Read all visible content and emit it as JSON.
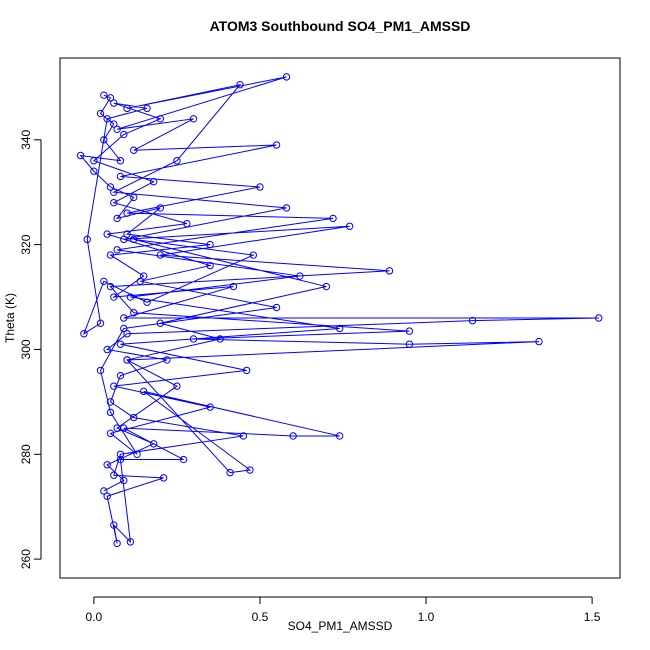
{
  "chart_data": {
    "type": "line",
    "markers": "circle",
    "color": "#0000ff",
    "title": "ATOM3 Southbound SO4_PM1_AMSSD",
    "x_label": "SO4_PM1_AMSSD",
    "y_label": "Theta (K)",
    "xlim": [
      -0.102,
      1.584
    ],
    "ylim": [
      256.4,
      355.6
    ],
    "xticks": [
      {
        "value": 0,
        "label": "0.0"
      },
      0.5,
      {
        "value": 1,
        "label": "1.0"
      },
      1.5
    ],
    "yticks": [
      260,
      280,
      300,
      320,
      340
    ],
    "x": [
      0.03,
      0.05,
      0.02,
      0.06,
      0.03,
      0.08,
      -0.04,
      0.0,
      0.05,
      0.12,
      0.07,
      0.2,
      0.1,
      0.35,
      0.05,
      0.15,
      0.06,
      0.42,
      0.09,
      1.52,
      1.14,
      0.1,
      0.04,
      0.22,
      0.08,
      0.05,
      0.12,
      0.45,
      0.08,
      0.06,
      0.21,
      0.04,
      0.07,
      0.06,
      0.11,
      0.08,
      0.27,
      0.09,
      0.6,
      0.74,
      0.15,
      0.47,
      0.41,
      0.1,
      1.34,
      0.95,
      0.3,
      0.95,
      0.12,
      0.05,
      0.89,
      0.2,
      0.77,
      0.09,
      0.58,
      0.06,
      0.25,
      0.44,
      0.1,
      0.58,
      0.07,
      0.3,
      0.12,
      0.55,
      0.08,
      0.5,
      0.1,
      0.72,
      0.07,
      0.62,
      0.11,
      0.74,
      0.08,
      0.46,
      0.06,
      0.35,
      0.05,
      0.13,
      0.05,
      0.02,
      0.09,
      0.55,
      0.14,
      0.35,
      0.04,
      0.28,
      0.06,
      0.18,
      0.0,
      0.09,
      0.2,
      0.06,
      0.16,
      0.04,
      -0.02,
      0.02,
      -0.03,
      0.03,
      0.16,
      0.48,
      0.12,
      0.7,
      0.2,
      0.38,
      0.1,
      0.25,
      0.07,
      0.18,
      0.04,
      0.09,
      0.03
    ],
    "y": [
      348.5,
      348,
      345,
      343,
      340,
      336,
      337,
      334,
      331,
      329,
      325,
      327,
      322,
      320,
      318,
      314,
      310,
      312,
      306,
      306,
      305.5,
      303,
      300,
      298,
      295,
      290,
      287,
      283.5,
      280,
      276,
      275.5,
      272,
      263,
      266.5,
      263.3,
      279,
      279,
      285,
      283.5,
      283.5,
      292,
      277,
      276.5,
      298,
      301.5,
      301,
      302,
      303.5,
      307,
      312,
      315,
      318,
      323.5,
      321,
      327,
      330,
      336,
      350.5,
      346,
      352,
      342,
      344,
      338,
      339,
      333,
      331,
      326,
      325,
      319,
      314,
      310,
      304,
      301,
      296,
      293,
      289,
      284,
      280,
      288,
      296,
      304,
      308,
      313,
      316,
      322,
      324,
      328,
      332,
      336,
      341,
      344,
      347,
      346,
      344,
      321,
      305,
      303,
      313,
      309,
      318,
      321,
      312,
      305,
      302,
      298,
      293,
      285,
      282,
      278,
      275,
      273
    ]
  }
}
